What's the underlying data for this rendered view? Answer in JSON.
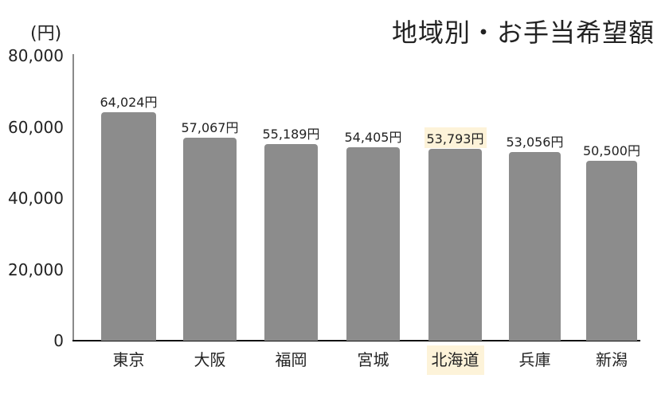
{
  "chart_data": {
    "type": "bar",
    "title": "地域別・お手当希望額",
    "xlabel": "",
    "ylabel": "(円)",
    "ylim": [
      0,
      80000
    ],
    "yticks": [
      "0",
      "20,000",
      "40,000",
      "60,000",
      "80,000"
    ],
    "grid": false,
    "legend": null,
    "categories": [
      "東京",
      "大阪",
      "福岡",
      "宮城",
      "北海道",
      "兵庫",
      "新潟"
    ],
    "values": [
      64024,
      57067,
      55189,
      54405,
      53793,
      53056,
      50500
    ],
    "value_labels": [
      "64,024円",
      "57,067円",
      "55,189円",
      "54,405円",
      "53,793円",
      "53,056円",
      "50,500円"
    ],
    "highlighted_category": "北海道",
    "colors": {
      "bar": "#8c8c8c",
      "highlight_background": "#fdf3d9",
      "axis": "#111111"
    }
  }
}
